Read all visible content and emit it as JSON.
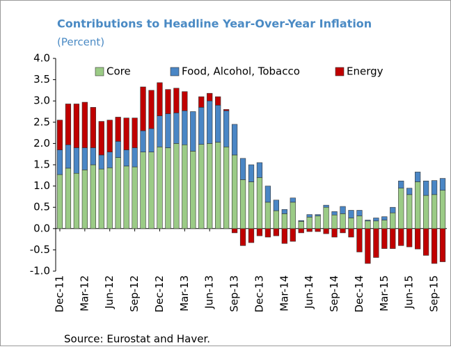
{
  "chart_data": {
    "type": "stacked_bar",
    "title": "Contributions to Headline Year-Over-Year Inflation",
    "subtitle": "(Percent)",
    "source": "Source: Eurostat and Haver.",
    "categories": [
      "Dec-11",
      null,
      null,
      "Mar-12",
      null,
      null,
      "Jun-12",
      null,
      null,
      "Sep-12",
      null,
      null,
      "Dec-12",
      null,
      null,
      "Mar-13",
      null,
      null,
      "Jun-13",
      null,
      null,
      "Sep-13",
      null,
      null,
      "Dec-13",
      null,
      null,
      "Mar-14",
      null,
      null,
      "Jun-14",
      null,
      null,
      "Sep-14",
      null,
      null,
      "Dec-14",
      null,
      null,
      "Mar-15",
      null,
      null,
      "Jun-15",
      null,
      null,
      "Sep-15",
      null
    ],
    "series": [
      {
        "name": "Core",
        "color": "#9bcb86",
        "values": [
          1.27,
          1.42,
          1.3,
          1.38,
          1.5,
          1.4,
          1.43,
          1.67,
          1.47,
          1.45,
          1.8,
          1.8,
          1.92,
          1.9,
          2.0,
          1.97,
          1.82,
          1.98,
          2.0,
          2.03,
          1.92,
          1.73,
          1.15,
          1.1,
          1.2,
          0.62,
          0.42,
          0.35,
          0.62,
          0.17,
          0.27,
          0.3,
          0.5,
          0.32,
          0.35,
          0.25,
          0.3,
          0.18,
          0.18,
          0.2,
          0.37,
          0.95,
          0.8,
          1.1,
          0.78,
          0.8,
          0.9
        ]
      },
      {
        "name": "Food, Alcohol, Tobacco",
        "color": "#4a86c5",
        "values": [
          0.58,
          0.55,
          0.6,
          0.52,
          0.4,
          0.33,
          0.37,
          0.38,
          0.38,
          0.45,
          0.5,
          0.55,
          0.73,
          0.8,
          0.72,
          0.8,
          0.93,
          0.87,
          1.0,
          0.87,
          0.85,
          0.72,
          0.5,
          0.4,
          0.35,
          0.38,
          0.25,
          0.1,
          0.1,
          0.02,
          0.06,
          0.03,
          0.05,
          0.08,
          0.17,
          0.18,
          0.13,
          0.02,
          0.07,
          0.08,
          0.13,
          0.17,
          0.15,
          0.23,
          0.34,
          0.33,
          0.28
        ]
      },
      {
        "name": "Energy",
        "color": "#c00000",
        "values": [
          0.7,
          0.96,
          1.03,
          1.07,
          0.95,
          0.79,
          0.75,
          0.57,
          0.75,
          0.7,
          1.03,
          0.9,
          0.78,
          0.57,
          0.58,
          0.45,
          0.0,
          0.25,
          0.18,
          0.2,
          0.03,
          -0.1,
          -0.4,
          -0.33,
          -0.17,
          -0.2,
          -0.17,
          -0.35,
          -0.3,
          -0.1,
          -0.07,
          -0.07,
          -0.12,
          -0.2,
          -0.1,
          -0.2,
          -0.55,
          -0.82,
          -0.68,
          -0.47,
          -0.47,
          -0.4,
          -0.43,
          -0.48,
          -0.63,
          -0.82,
          -0.78
        ]
      }
    ],
    "ylim": [
      -1,
      4
    ],
    "yticks": [
      {
        "value": -1,
        "label": "-1.0"
      },
      -0.5,
      {
        "value": 0,
        "label": "0.0"
      },
      0.5,
      {
        "value": 1,
        "label": "1.0"
      },
      1.5,
      {
        "value": 2,
        "label": "2.0"
      },
      2.5,
      {
        "value": 3,
        "label": "3.0"
      },
      3.5,
      {
        "value": 4,
        "label": "4.0"
      }
    ],
    "legend": "top",
    "grid": false
  }
}
